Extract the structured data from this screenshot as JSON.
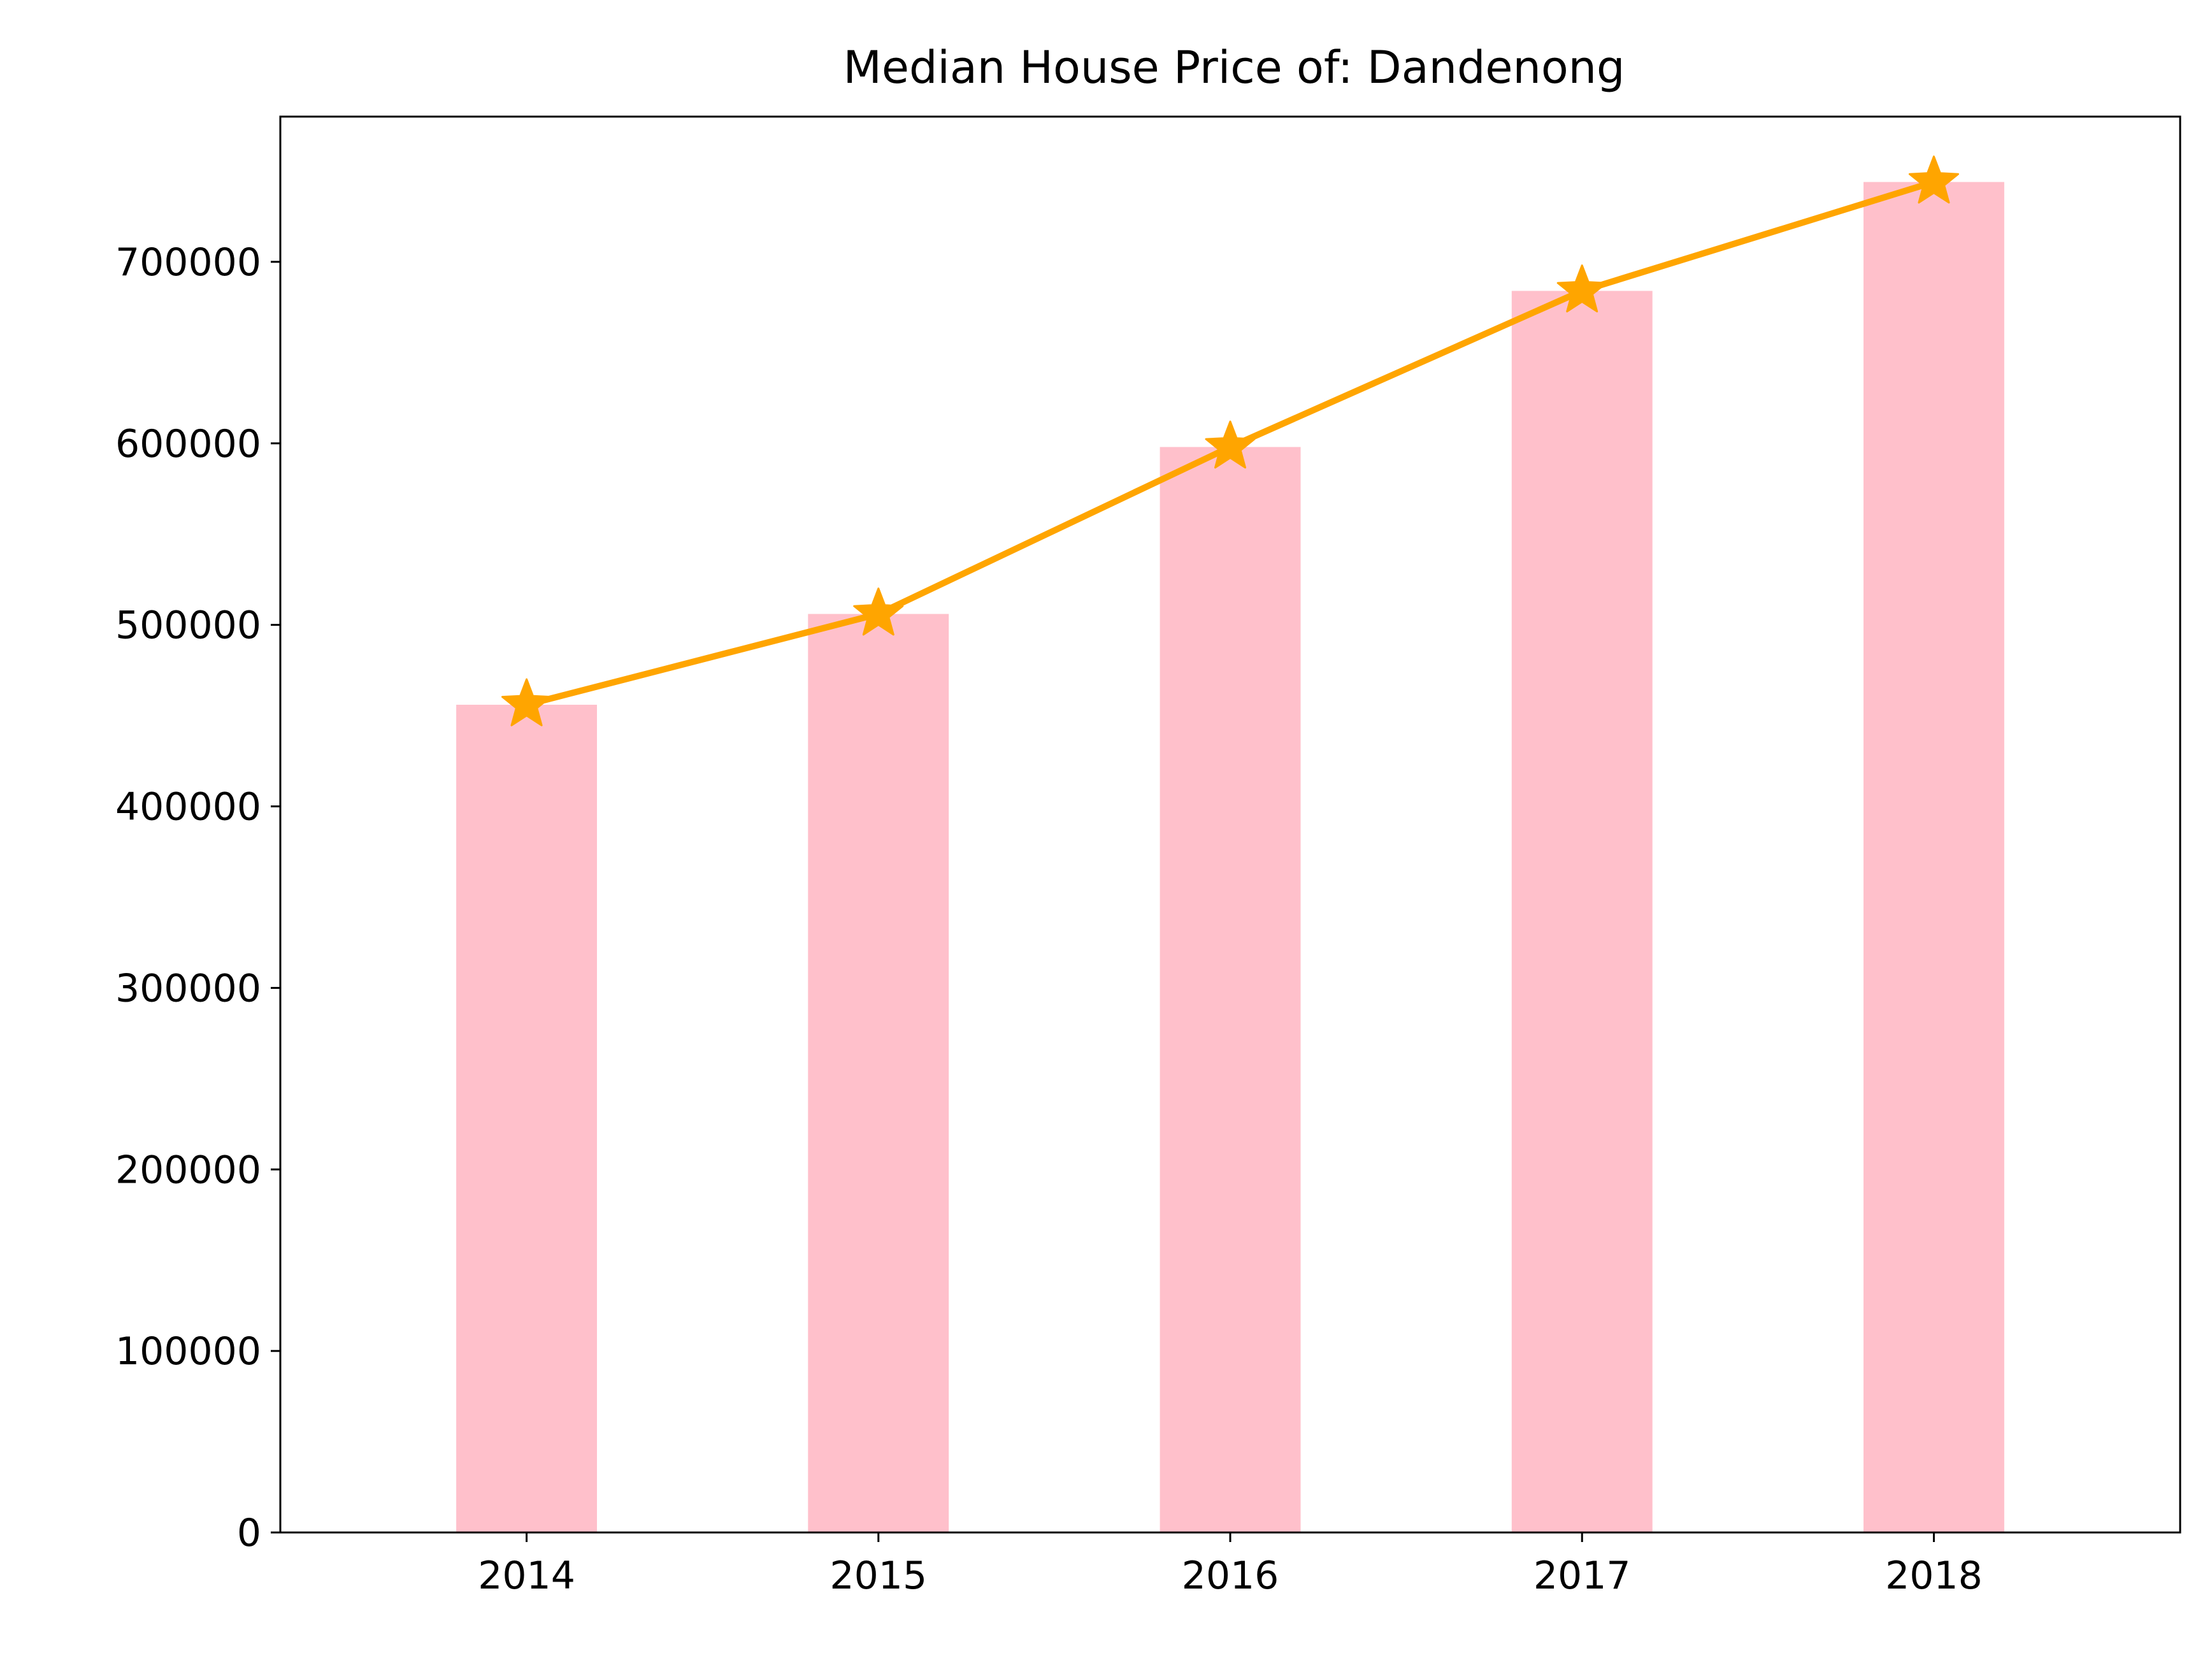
{
  "chart_data": {
    "type": "bar",
    "title": "Median House Price of: Dandenong",
    "xlabel": "",
    "ylabel": "",
    "categories": [
      "2014",
      "2015",
      "2016",
      "2017",
      "2018"
    ],
    "values": [
      456000,
      506000,
      598000,
      684000,
      744000
    ],
    "overlay_line": {
      "values": [
        456000,
        506000,
        598000,
        684000,
        744000
      ],
      "marker": "star"
    },
    "ylim": [
      0,
      780000
    ],
    "yticks": [
      0,
      100000,
      200000,
      300000,
      400000,
      500000,
      600000,
      700000
    ],
    "ytick_labels": [
      "0",
      "100000",
      "200000",
      "300000",
      "400000",
      "500000",
      "600000",
      "700000"
    ],
    "grid": false,
    "legend": "none",
    "colors": {
      "bar": "#ffc0cb",
      "line": "#ffa500",
      "axis": "#000000"
    }
  }
}
